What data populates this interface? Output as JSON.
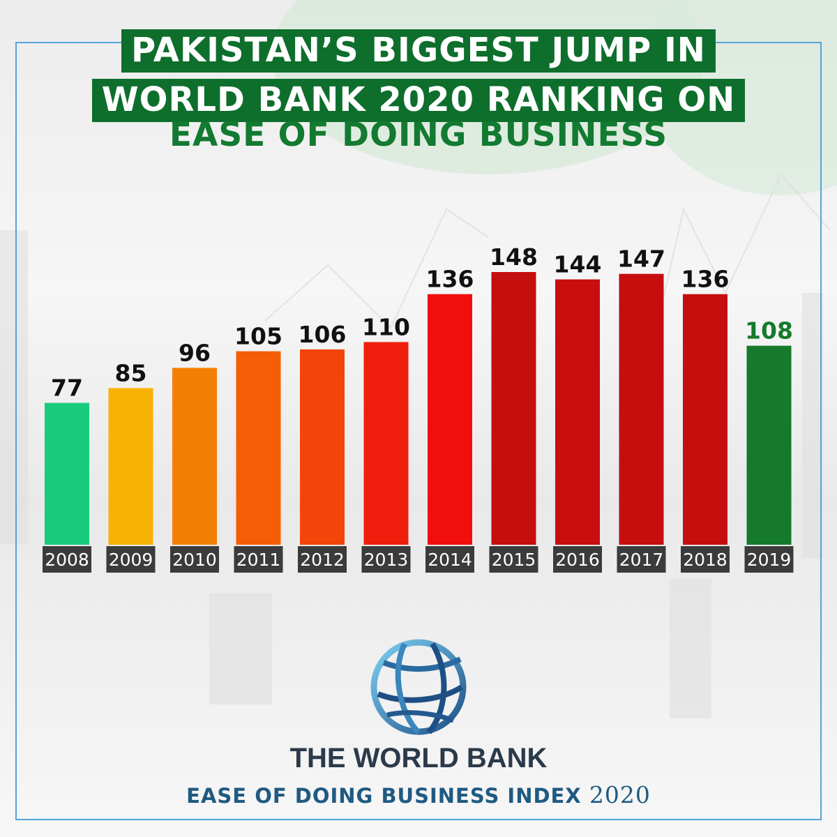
{
  "header": {
    "line1": "PAKISTAN’S BIGGEST JUMP IN",
    "line2": "WORLD BANK 2020 RANKING ON",
    "line3": "EASE OF DOING BUSINESS"
  },
  "chart_data": {
    "type": "bar",
    "categories": [
      "2008",
      "2009",
      "2010",
      "2011",
      "2012",
      "2013",
      "2014",
      "2015",
      "2016",
      "2017",
      "2018",
      "2019"
    ],
    "values": [
      77,
      85,
      96,
      105,
      106,
      110,
      136,
      148,
      144,
      147,
      136,
      108
    ],
    "colors": [
      "#19cb7c",
      "#f7b203",
      "#f47f05",
      "#f45e04",
      "#f34409",
      "#f01f0d",
      "#f10f0b",
      "#c50e0e",
      "#c80e0e",
      "#c60e0e",
      "#c50f0f",
      "#157a2c"
    ],
    "value_label_colors": [
      "#111111",
      "#111111",
      "#111111",
      "#111111",
      "#111111",
      "#111111",
      "#111111",
      "#111111",
      "#111111",
      "#111111",
      "#111111",
      "#157a2c"
    ],
    "grid": false
  },
  "footer": {
    "organization": "THE WORLD BANK",
    "index_label": "EASE OF DOING BUSINESS INDEX",
    "index_year": "2020"
  }
}
